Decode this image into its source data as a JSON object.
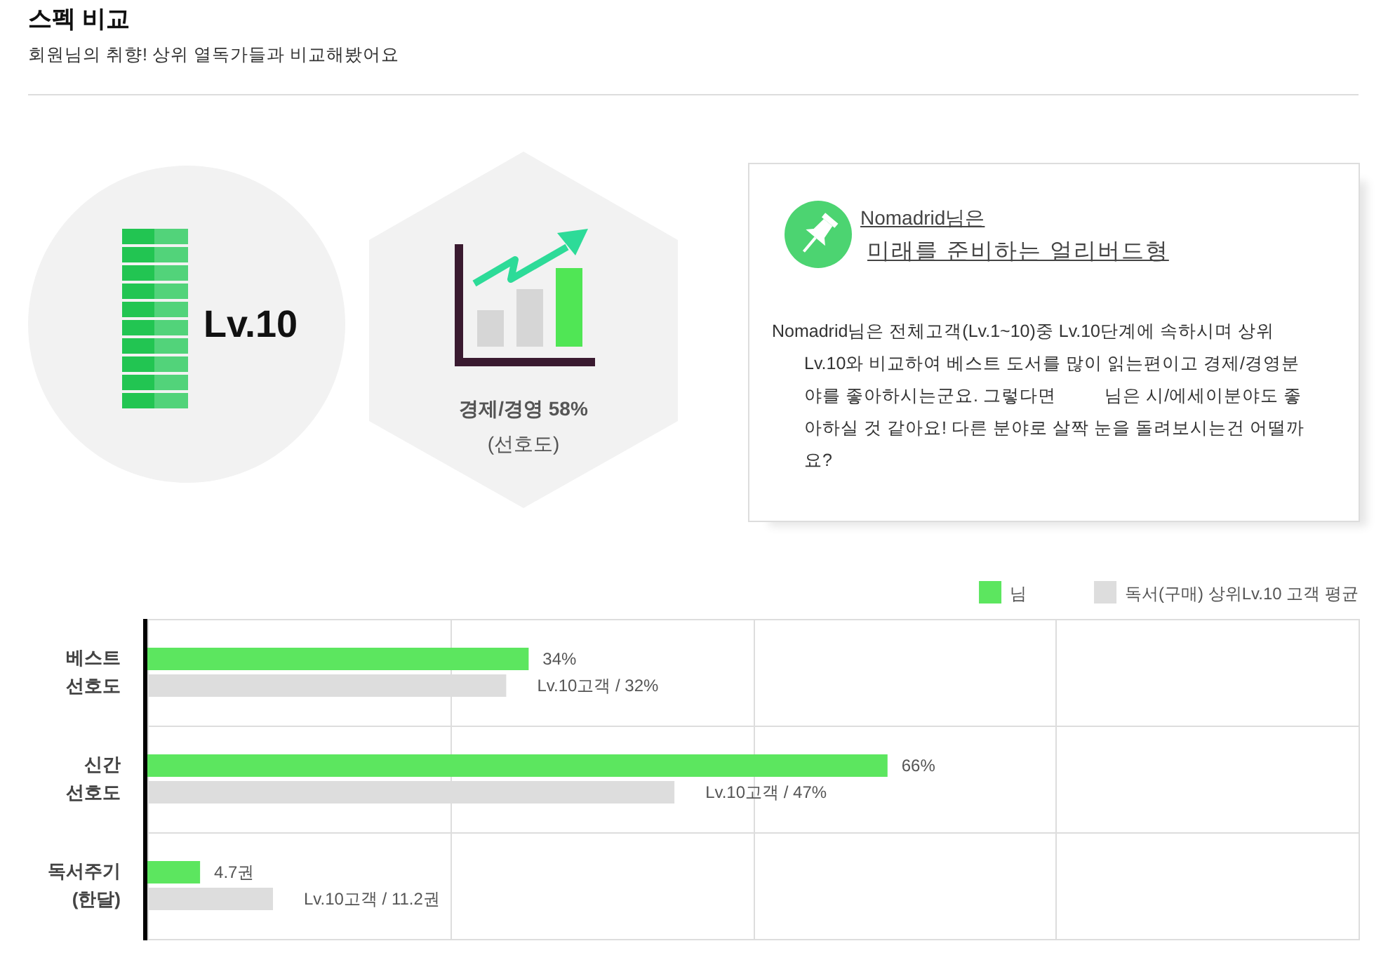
{
  "chart_data": [
    {
      "type": "other",
      "title": "스펙 비교",
      "subtitle": "회원님의 취향! 상위 열독가들과 비교해봤어요",
      "annotations": [
        "Lv.10",
        "경제/경영 58%",
        "(선호도)"
      ]
    },
    {
      "type": "other",
      "title": "Nomadrid님은",
      "subtitle": "미래를 준비하는 얼리버드형",
      "annotations": [
        "Nomadrid님은 전체고객(Lv.1~10)중 Lv.10단계에 속하시며 상위 Lv.10와 비교하여 베스트 도서를 많이 읽는편이고 경제/경영분야를 좋아하시는군요. 그렇다면          님은 시/에세이분야도 좋아하실 것 같아요! 다른 분야로 살짝 눈을 돌려보시는건 어떨까요?"
      ]
    },
    {
      "type": "bar",
      "orientation": "horizontal",
      "categories": [
        "베스트 선호도",
        "신간 선호도",
        "독서주기 (한달)"
      ],
      "series": [
        {
          "name": "님",
          "color": "#5ce65f",
          "values": [
            34,
            66,
            4.7
          ],
          "value_labels": [
            "34%",
            "66%",
            "4.7권"
          ]
        },
        {
          "name": "독서(구매) 상위Lv.10 고객 평균",
          "color": "#dddddd",
          "values": [
            32,
            47,
            11.2
          ],
          "value_labels": [
            "Lv.10고객 / 32%",
            "Lv.10고객 / 47%",
            "Lv.10고객 / 11.2권"
          ]
        }
      ],
      "xlim": [
        0,
        108
      ],
      "xticks": [
        {
          "value": 0,
          "label": null
        },
        {
          "value": 27,
          "label": null
        },
        {
          "value": 54,
          "label": null
        },
        {
          "value": 81,
          "label": null
        },
        {
          "value": 108,
          "label": null
        }
      ],
      "grid": true,
      "legend": "top right"
    }
  ]
}
